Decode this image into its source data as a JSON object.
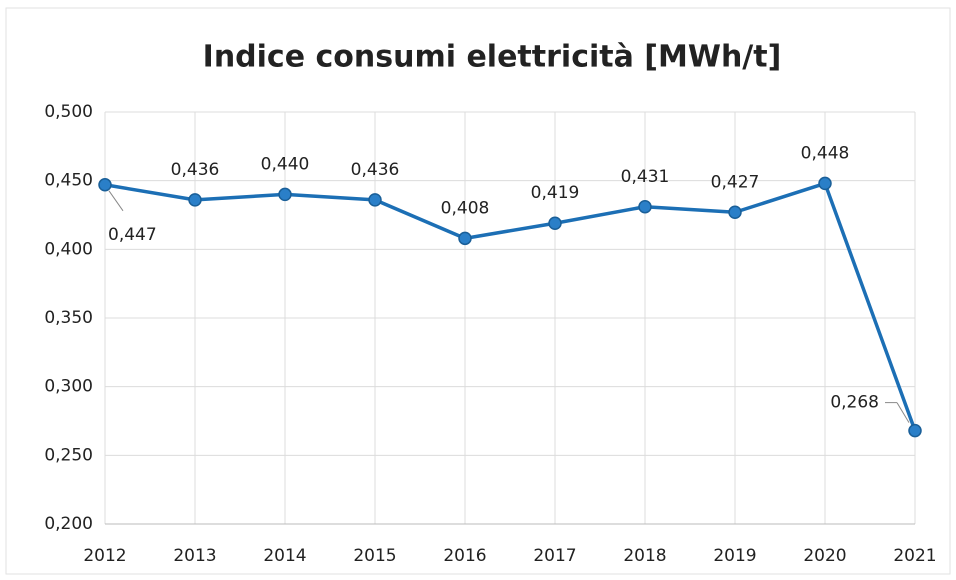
{
  "chart_data": {
    "type": "line",
    "title": "Indice consumi elettricità [MWh/t]",
    "categories": [
      "2012",
      "2013",
      "2014",
      "2015",
      "2016",
      "2017",
      "2018",
      "2019",
      "2020",
      "2021"
    ],
    "series": [
      {
        "name": "Indice consumi elettricità",
        "color": "#1c6fb5",
        "values": [
          0.447,
          0.436,
          0.44,
          0.436,
          0.408,
          0.419,
          0.431,
          0.427,
          0.448,
          0.268
        ],
        "value_labels": [
          "0,447",
          "0,436",
          "0,440",
          "0,436",
          "0,408",
          "0,419",
          "0,431",
          "0,427",
          "0,448",
          "0,268"
        ]
      }
    ],
    "ylim": [
      0.2,
      0.5
    ],
    "yticks": [
      {
        "value": 0.2,
        "label": "0,200"
      },
      {
        "value": 0.25,
        "label": "0,250"
      },
      {
        "value": 0.3,
        "label": "0,300"
      },
      {
        "value": 0.35,
        "label": "0,350"
      },
      {
        "value": 0.4,
        "label": "0,400"
      },
      {
        "value": 0.45,
        "label": "0,450"
      },
      {
        "value": 0.5,
        "label": "0,500"
      }
    ],
    "grid": true
  }
}
